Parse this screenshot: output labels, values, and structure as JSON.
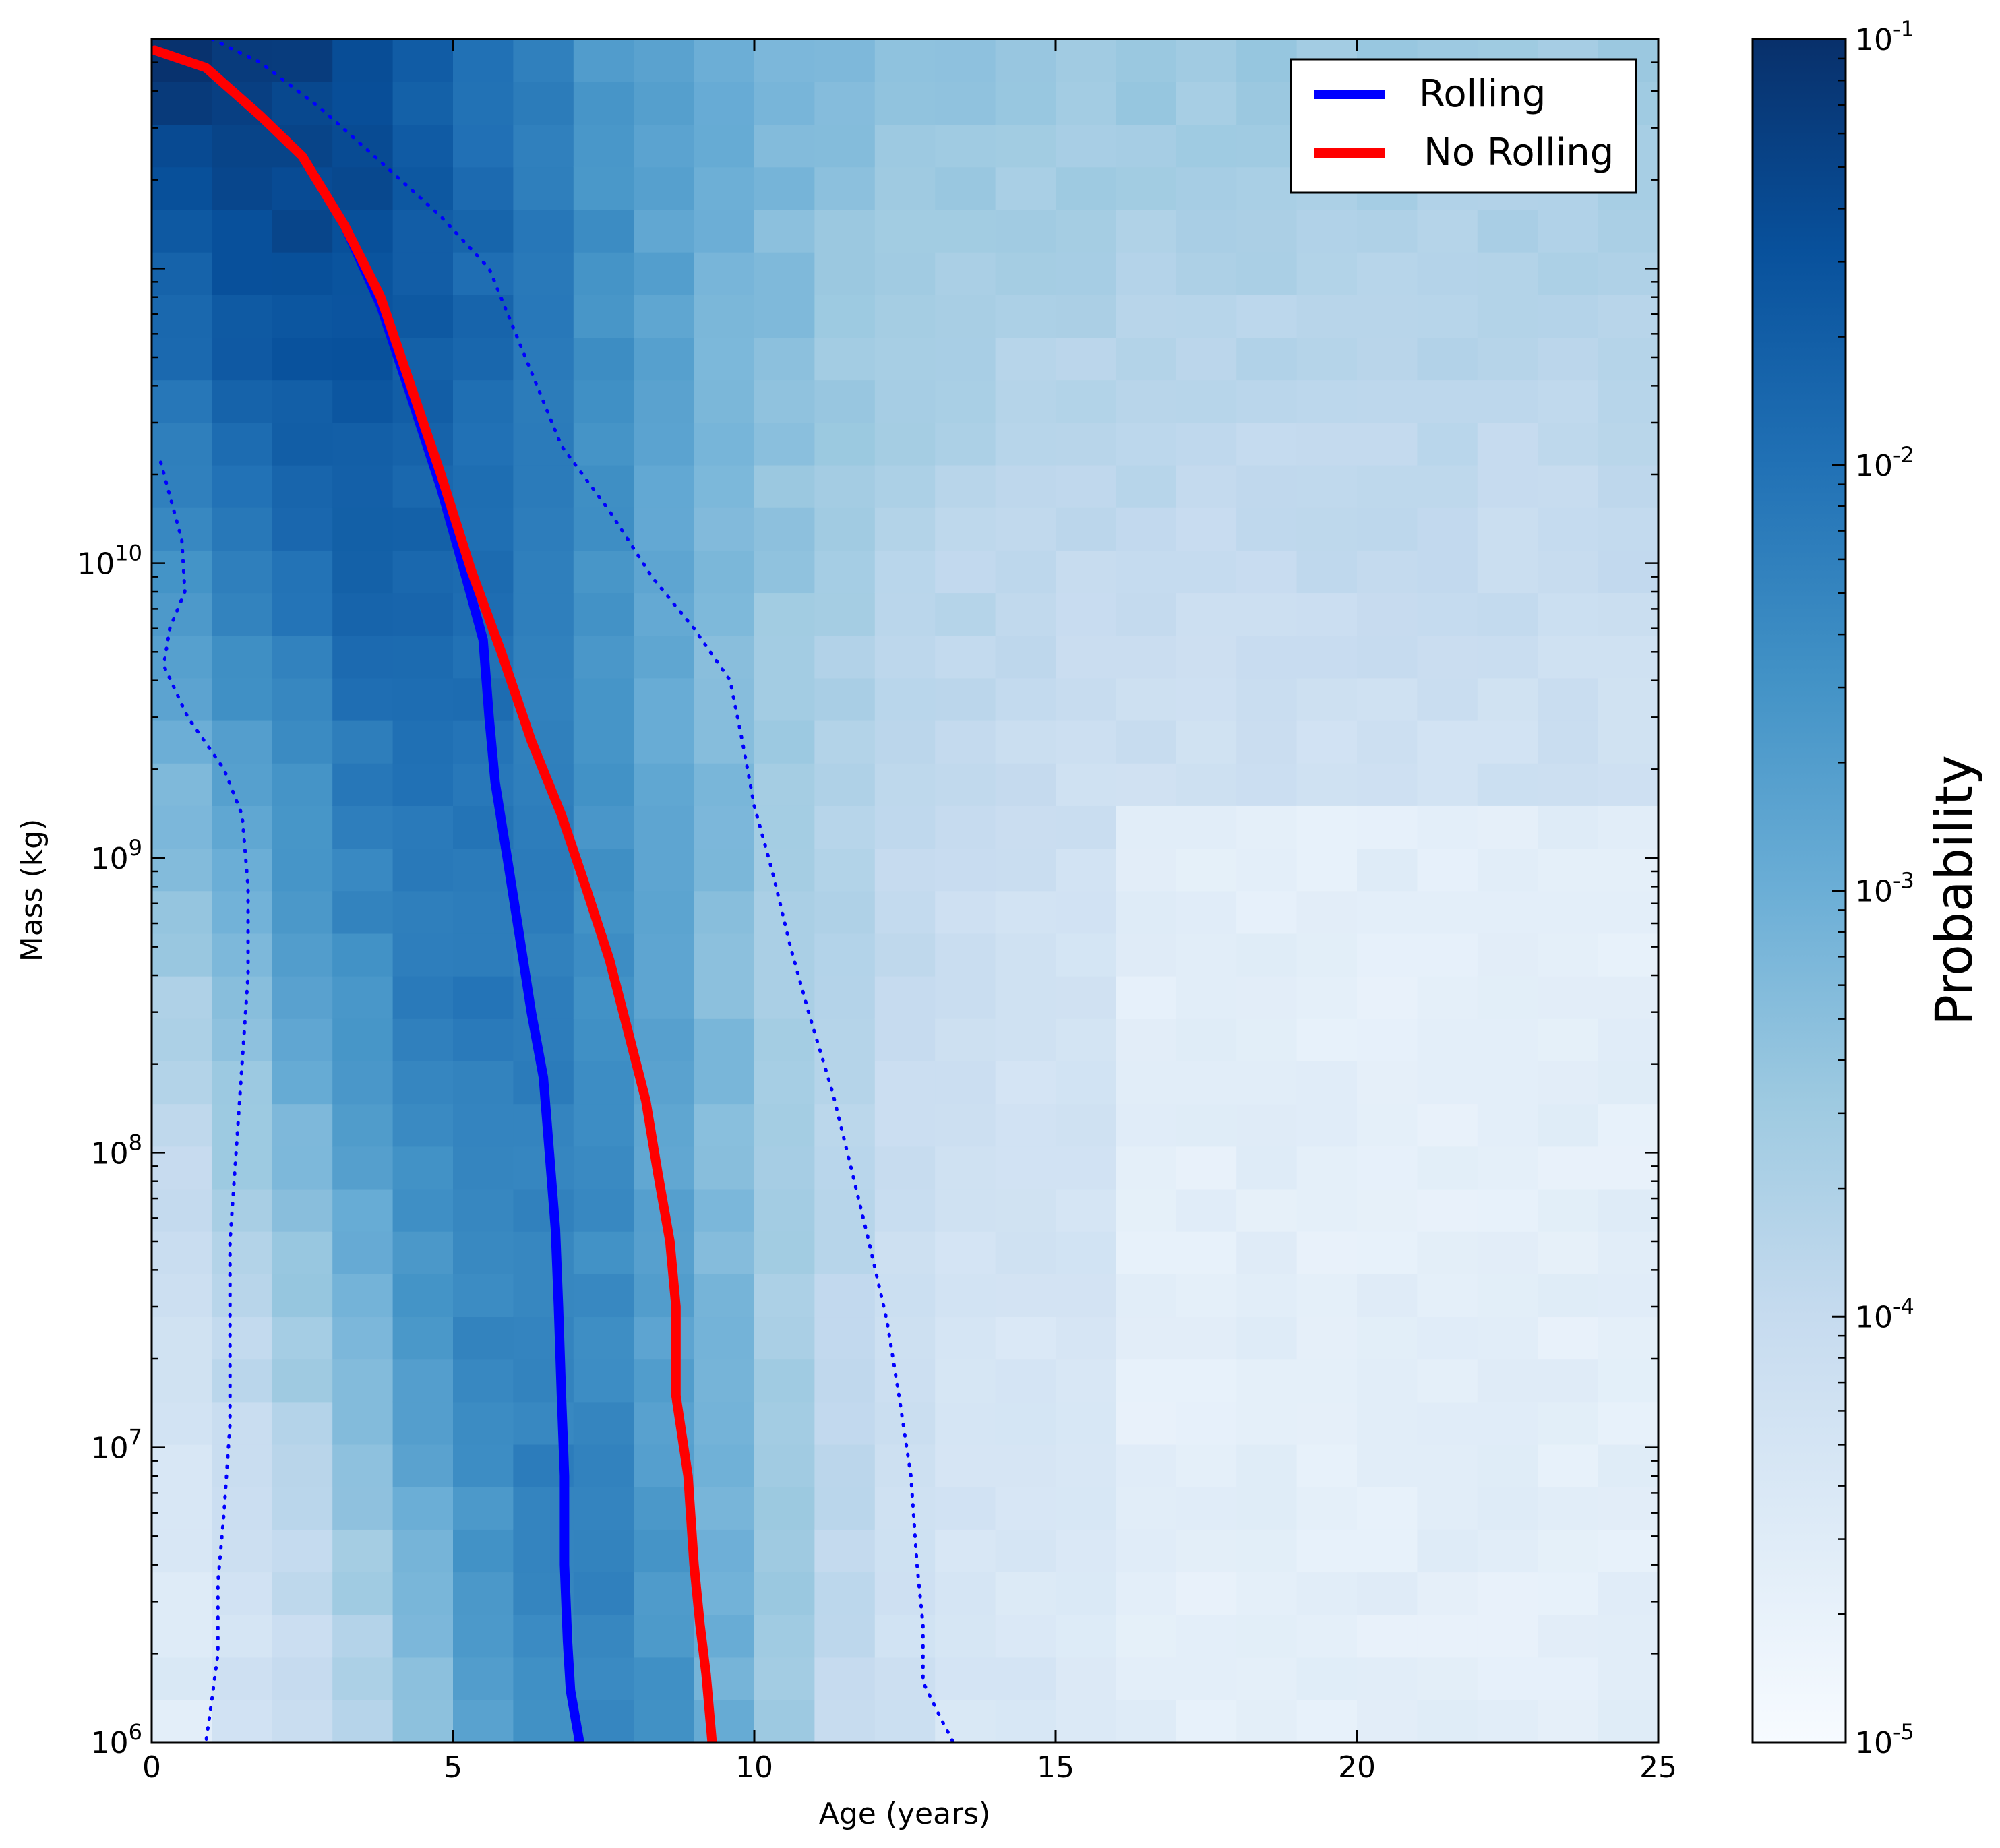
{
  "chart_data": {
    "type": "heatmap",
    "title": "",
    "xlabel": "Age (years)",
    "ylabel": "Mass (kg)",
    "xlim": [
      0,
      25
    ],
    "ylim": [
      1000000,
      600000000000
    ],
    "yscale": "log",
    "x_ticks": [
      {
        "value": 0,
        "label": "0"
      },
      {
        "value": 5,
        "label": "5"
      },
      {
        "value": 10,
        "label": "10"
      },
      {
        "value": 15,
        "label": "15"
      },
      {
        "value": 20,
        "label": "20"
      },
      {
        "value": 25,
        "label": "25"
      }
    ],
    "y_ticks": [
      {
        "value": 1000000,
        "base": "10",
        "exp": "6"
      },
      {
        "value": 10000000,
        "base": "10",
        "exp": "7"
      },
      {
        "value": 100000000,
        "base": "10",
        "exp": "8"
      },
      {
        "value": 1000000000,
        "base": "10",
        "exp": "9"
      },
      {
        "value": 10000000000,
        "base": "10",
        "exp": "10"
      }
    ],
    "colorbar": {
      "label": "Probability",
      "scale": "log",
      "range": [
        1e-05,
        0.1
      ],
      "colormap": [
        "#f7fbff",
        "#deebf7",
        "#c6dbef",
        "#9ecae1",
        "#6baed6",
        "#4292c6",
        "#2171b5",
        "#08519c",
        "#08306b"
      ],
      "ticks": [
        {
          "value": 0.1,
          "base": "10",
          "exp": "-1"
        },
        {
          "value": 0.01,
          "base": "10",
          "exp": "-2"
        },
        {
          "value": 0.001,
          "base": "10",
          "exp": "-3"
        },
        {
          "value": 0.0001,
          "base": "10",
          "exp": "-4"
        },
        {
          "value": 1e-05,
          "base": "10",
          "exp": "-5"
        }
      ]
    },
    "legend": {
      "placement": "top-right",
      "entries": [
        {
          "label": "Rolling",
          "color": "#0000ff"
        },
        {
          "label": "No Rolling",
          "color": "#ff0000"
        }
      ]
    },
    "series": [
      {
        "name": "Rolling",
        "style": "solid",
        "color": "#0000ff",
        "points": [
          [
            0.05,
            550000000000
          ],
          [
            0.9,
            480000000000
          ],
          [
            1.8,
            330000000000
          ],
          [
            2.5,
            240000000000
          ],
          [
            3.2,
            140000000000
          ],
          [
            3.8,
            75000000000
          ],
          [
            4.3,
            37000000000
          ],
          [
            4.8,
            18000000000
          ],
          [
            5.2,
            9200000000
          ],
          [
            5.5,
            5500000000
          ],
          [
            5.6,
            3000000000
          ],
          [
            5.7,
            1800000000
          ],
          [
            5.9,
            1000000000
          ],
          [
            6.1,
            550000000
          ],
          [
            6.3,
            300000000
          ],
          [
            6.5,
            180000000
          ],
          [
            6.6,
            100000000
          ],
          [
            6.7,
            55000000
          ],
          [
            6.75,
            30000000
          ],
          [
            6.8,
            15000000
          ],
          [
            6.85,
            8000000
          ],
          [
            6.85,
            4000000
          ],
          [
            6.9,
            2200000
          ],
          [
            6.95,
            1500000
          ],
          [
            7.1,
            1000000
          ]
        ]
      },
      {
        "name": "No Rolling",
        "style": "solid",
        "color": "#ff0000",
        "points": [
          [
            0.05,
            550000000000
          ],
          [
            0.9,
            480000000000
          ],
          [
            1.8,
            330000000000
          ],
          [
            2.5,
            240000000000
          ],
          [
            3.2,
            140000000000
          ],
          [
            3.8,
            80000000000
          ],
          [
            4.3,
            40000000000
          ],
          [
            4.8,
            20000000000
          ],
          [
            5.3,
            9500000000
          ],
          [
            5.8,
            5000000000
          ],
          [
            6.3,
            2500000000
          ],
          [
            6.8,
            1400000000
          ],
          [
            7.2,
            800000000
          ],
          [
            7.6,
            450000000
          ],
          [
            7.9,
            260000000
          ],
          [
            8.2,
            150000000
          ],
          [
            8.4,
            85000000
          ],
          [
            8.6,
            50000000
          ],
          [
            8.7,
            30000000
          ],
          [
            8.7,
            15000000
          ],
          [
            8.9,
            8000000
          ],
          [
            9.0,
            4000000
          ],
          [
            9.1,
            2500000
          ],
          [
            9.2,
            1700000
          ],
          [
            9.3,
            1000000
          ]
        ]
      },
      {
        "name": "",
        "style": "dotted",
        "color": "#0000ff",
        "points": [
          [
            1.0,
            600000000000
          ],
          [
            1.8,
            500000000000
          ],
          [
            2.8,
            350000000000
          ],
          [
            3.8,
            230000000000
          ],
          [
            4.8,
            150000000000
          ],
          [
            5.6,
            100000000000
          ],
          [
            6.2,
            50000000000
          ],
          [
            6.8,
            25000000000
          ],
          [
            7.6,
            15000000000
          ],
          [
            8.3,
            9000000000
          ],
          [
            9.0,
            6000000000
          ],
          [
            9.6,
            4000000000
          ],
          [
            9.8,
            2500000000
          ],
          [
            10.0,
            1500000000
          ],
          [
            10.3,
            900000000
          ],
          [
            10.6,
            500000000
          ],
          [
            10.9,
            300000000
          ],
          [
            11.3,
            160000000
          ],
          [
            11.6,
            90000000
          ],
          [
            11.9,
            50000000
          ],
          [
            12.2,
            27000000
          ],
          [
            12.4,
            15000000
          ],
          [
            12.6,
            8000000
          ],
          [
            12.7,
            4000000
          ],
          [
            12.8,
            2500000
          ],
          [
            12.8,
            1600000
          ],
          [
            13.1,
            1200000
          ],
          [
            13.3,
            1000000
          ]
        ]
      },
      {
        "name": "",
        "style": "dotted",
        "color": "#0000ff",
        "points": [
          [
            0.15,
            22000000000
          ],
          [
            0.5,
            12000000000
          ],
          [
            0.55,
            8000000000
          ],
          [
            0.3,
            6000000000
          ],
          [
            0.2,
            4500000000
          ],
          [
            0.6,
            3000000000
          ],
          [
            1.2,
            2000000000
          ],
          [
            1.5,
            1400000000
          ],
          [
            1.6,
            800000000
          ],
          [
            1.6,
            400000000
          ],
          [
            1.5,
            200000000
          ],
          [
            1.4,
            100000000
          ],
          [
            1.3,
            50000000
          ],
          [
            1.3,
            25000000
          ],
          [
            1.3,
            12000000
          ],
          [
            1.2,
            6000000
          ],
          [
            1.1,
            3500000
          ],
          [
            1.1,
            2000000
          ],
          [
            1.0,
            1400000
          ],
          [
            0.9,
            1000000
          ]
        ]
      }
    ]
  }
}
